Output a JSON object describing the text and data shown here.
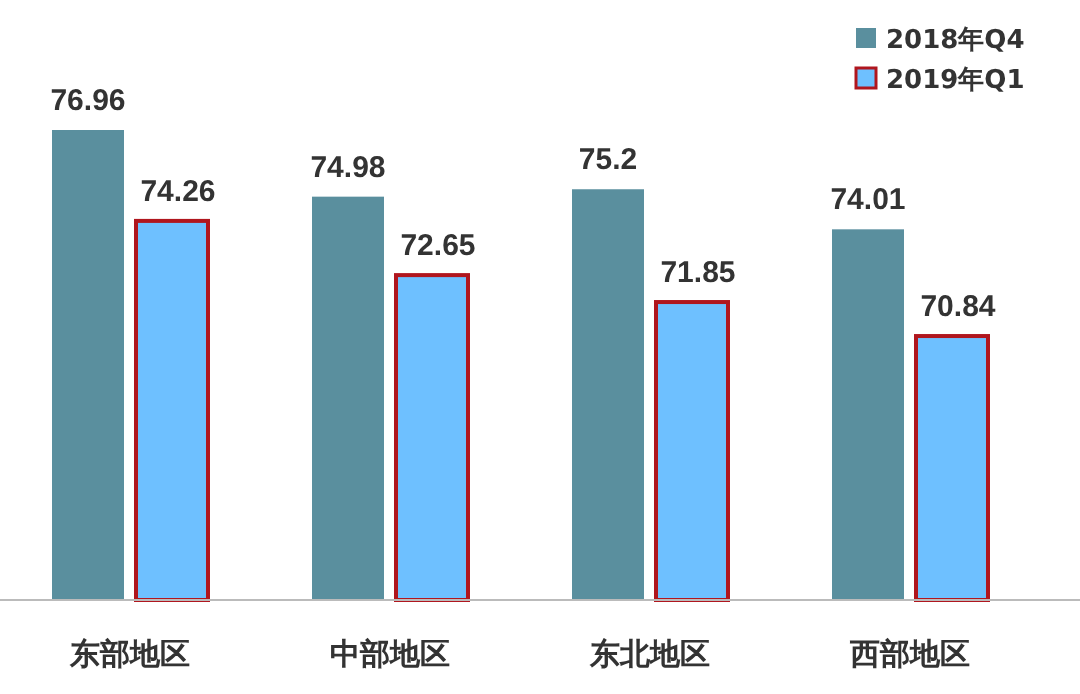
{
  "chart_data": {
    "type": "bar",
    "categories": [
      "东部地区",
      "中部地区",
      "东北地区",
      "西部地区"
    ],
    "series": [
      {
        "name": "2018年Q4",
        "color": "#5a8f9e",
        "values": [
          76.96,
          74.98,
          75.2,
          74.01
        ]
      },
      {
        "name": "2019年Q1",
        "color": "#6ec0ff",
        "values": [
          74.26,
          72.65,
          71.85,
          70.84
        ]
      }
    ],
    "ylim": [
      63,
      76.96
    ],
    "data_labels": true,
    "legend": "top right",
    "grid": false
  }
}
